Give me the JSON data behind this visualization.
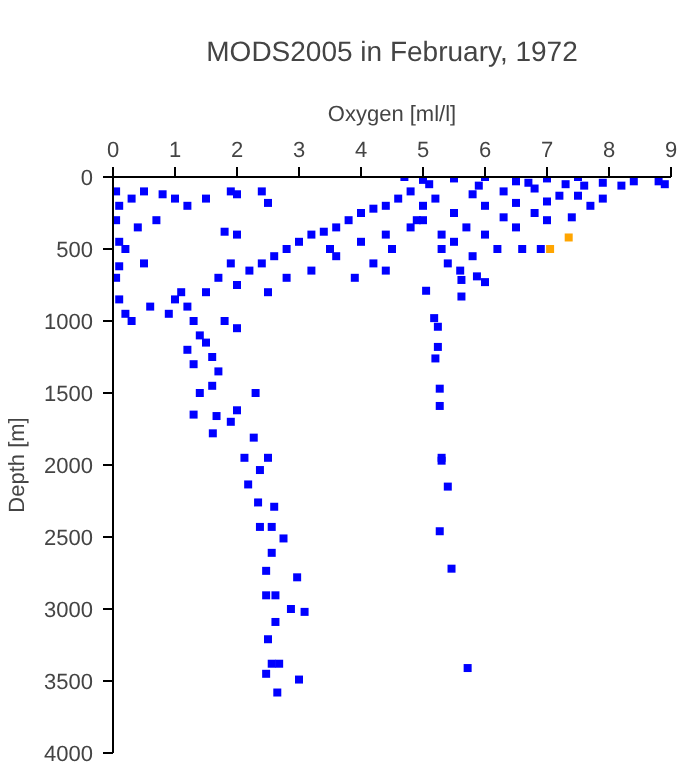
{
  "chart_data": {
    "type": "scatter",
    "title": "MODS2005 in February, 1972",
    "xlabel": "Oxygen [ml/l]",
    "ylabel": "Depth [m]",
    "xlim": [
      0,
      9
    ],
    "ylim": [
      4000,
      0
    ],
    "xticks": [
      0,
      1,
      2,
      3,
      4,
      5,
      6,
      7,
      8,
      9
    ],
    "yticks": [
      0,
      500,
      1000,
      1500,
      2000,
      2500,
      3000,
      3500,
      4000
    ],
    "grid": false,
    "marker": "square",
    "series": [
      {
        "color": "#0000ff",
        "x": [
          0.05,
          0.1,
          0.05,
          0.1,
          0.3,
          0.5,
          0.8,
          1.0,
          0.4,
          0.7,
          0.2,
          0.5,
          0.1,
          0.05,
          0.2,
          0.3,
          0.6,
          0.9,
          1.0,
          1.2,
          1.5,
          1.9,
          2.0,
          2.4,
          2.5,
          1.8,
          2.0,
          0.1,
          1.1,
          1.2,
          1.3,
          1.4,
          1.2,
          1.5,
          1.6,
          1.3,
          1.7,
          1.4,
          1.5,
          1.7,
          1.9,
          2.0,
          2.2,
          2.4,
          2.6,
          2.8,
          3.0,
          3.2,
          3.4,
          3.6,
          3.8,
          4.0,
          4.2,
          4.4,
          4.6,
          2.5,
          2.8,
          3.2,
          3.6,
          4.0,
          4.4,
          4.8,
          5.0,
          3.5,
          1.8,
          2.0,
          1.6,
          2.0,
          1.9,
          2.3,
          1.3,
          1.61,
          2.27,
          2.12,
          2.5,
          2.37,
          2.18,
          2.34,
          2.6,
          2.37,
          2.56,
          2.75,
          2.56,
          2.47,
          2.97,
          2.47,
          2.62,
          2.87,
          3.09,
          2.62,
          2.5,
          2.56,
          2.68,
          2.47,
          3.0,
          2.65,
          1.67,
          5.27,
          5.3,
          5.4,
          5.27,
          5.46,
          5.72,
          5.18,
          5.24,
          5.24,
          5.2,
          5.27,
          5.3,
          5.62,
          5.05,
          6.0,
          5.87,
          5.62,
          4.7,
          5.0,
          5.5,
          6.0,
          6.5,
          7.0,
          7.3,
          7.5,
          4.8,
          5.2,
          5.8,
          6.3,
          6.8,
          7.2,
          5.0,
          5.5,
          6.0,
          6.5,
          7.0,
          7.6,
          7.9,
          8.2,
          8.4,
          8.8,
          8.9,
          7.7,
          7.4,
          7.0,
          6.5,
          6.0,
          5.5,
          5.3,
          5.8,
          6.2,
          6.6,
          6.9,
          5.4,
          5.6,
          4.5,
          4.2,
          3.9,
          4.4,
          7.9,
          5.1,
          5.9,
          6.7,
          4.9,
          5.7,
          6.3,
          6.8,
          7.5,
          5.3
        ],
        "values": [
          100,
          200,
          300,
          450,
          150,
          100,
          120,
          150,
          350,
          300,
          500,
          600,
          620,
          700,
          950,
          1000,
          900,
          950,
          850,
          200,
          150,
          100,
          120,
          100,
          180,
          380,
          400,
          850,
          800,
          900,
          1000,
          1100,
          1200,
          1150,
          1250,
          1300,
          1350,
          1500,
          800,
          700,
          600,
          750,
          650,
          600,
          550,
          500,
          450,
          400,
          380,
          350,
          300,
          250,
          220,
          200,
          150,
          800,
          700,
          650,
          550,
          450,
          400,
          350,
          300,
          500,
          1000,
          1050,
          1450,
          1620,
          1700,
          1500,
          1650,
          1780,
          1810,
          1950,
          1950,
          2035,
          2135,
          2260,
          2290,
          2430,
          2430,
          2510,
          2610,
          2735,
          2780,
          2905,
          2905,
          3000,
          3020,
          3090,
          3210,
          3380,
          3380,
          3450,
          3490,
          3580,
          1660,
          1590,
          1970,
          2150,
          2460,
          2720,
          3410,
          980,
          1040,
          1180,
          1260,
          1470,
          1950,
          830,
          790,
          730,
          690,
          715,
          0,
          20,
          10,
          0,
          30,
          10,
          50,
          0,
          100,
          150,
          120,
          100,
          80,
          130,
          200,
          250,
          200,
          180,
          170,
          60,
          40,
          60,
          30,
          30,
          50,
          200,
          280,
          300,
          350,
          400,
          450,
          500,
          550,
          500,
          500,
          500,
          600,
          650,
          500,
          600,
          700,
          650,
          150,
          50,
          60,
          40,
          300,
          350,
          280,
          250,
          130,
          400
        ]
      },
      {
        "color": "#ffa500",
        "x": [
          7.35,
          7.05
        ],
        "values": [
          420,
          500
        ]
      }
    ]
  }
}
